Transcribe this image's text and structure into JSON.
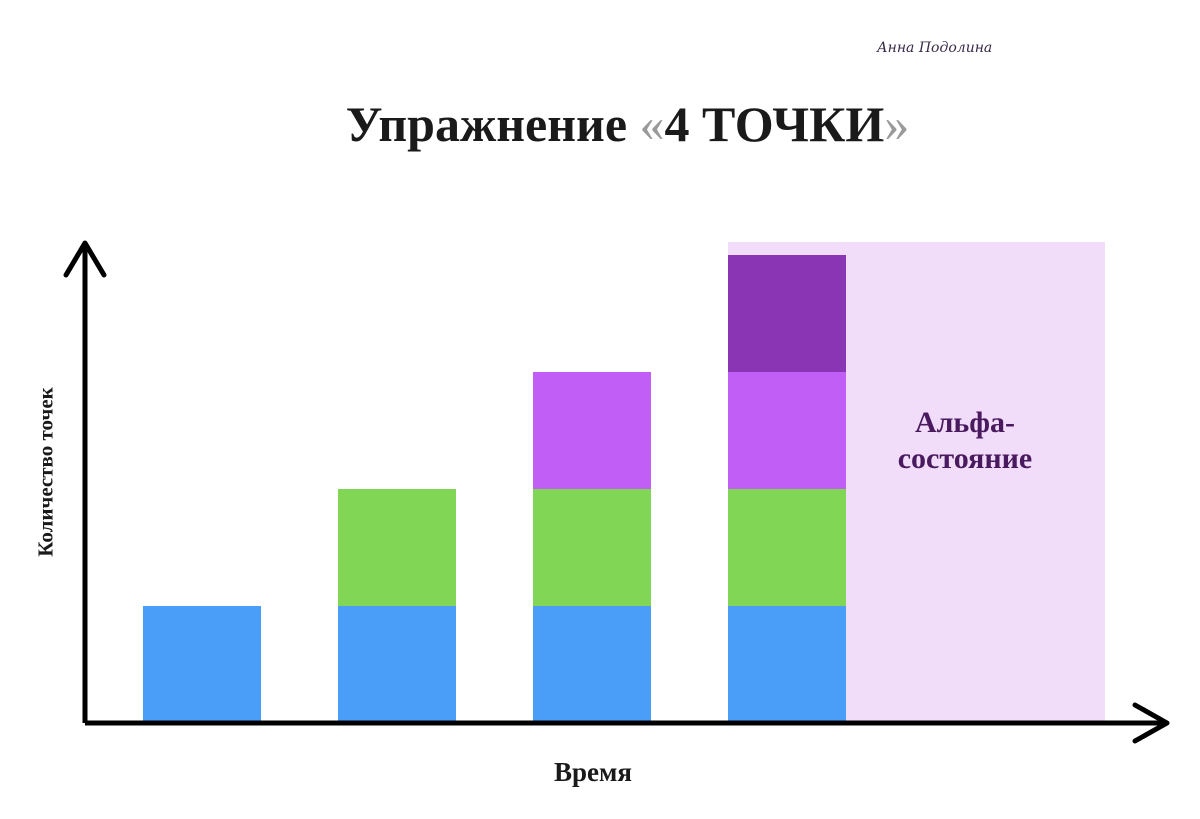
{
  "author": "Анна Подолина",
  "title": {
    "text": "Упражнение ",
    "quote_open": "«",
    "highlight": "4 ТОЧКИ",
    "quote_close": "»"
  },
  "colors": {
    "axis": "#000000",
    "alpha_zone": "#f1dcfa",
    "alpha_label": "#4a1a5e"
  },
  "chart_data": {
    "type": "bar",
    "stacked": true,
    "categories": [
      "",
      "",
      "",
      ""
    ],
    "xlabel": "Время",
    "ylabel": "Количество точек",
    "ylim": [
      0,
      4
    ],
    "grid": false,
    "series": [
      {
        "values": [
          1,
          1,
          1,
          1
        ],
        "color": "#4a9ef7"
      },
      {
        "values": [
          0,
          1,
          1,
          1
        ],
        "color": "#82d655"
      },
      {
        "values": [
          0,
          0,
          1,
          1
        ],
        "color": "#c05ef5"
      },
      {
        "values": [
          0,
          0,
          0,
          1
        ],
        "color": "#8a35b3"
      }
    ],
    "annotation": {
      "label": "Альфа-\nсостояние",
      "spans_from_category": 3
    }
  }
}
